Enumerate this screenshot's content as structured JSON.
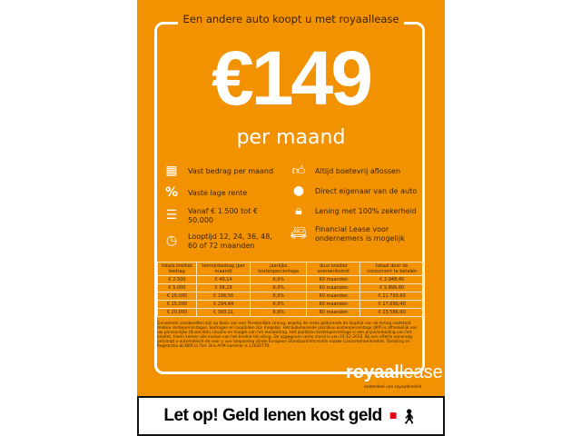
{
  "tagline": "Een andere auto koopt u met royaallease",
  "price": "€149",
  "per_month": "per maand",
  "features_left": [
    {
      "icon": "calendar-icon",
      "text": "Vast bedrag per maand"
    },
    {
      "icon": "percent-icon",
      "text": "Vaste lage rente"
    },
    {
      "icon": "coins-icon",
      "text": "Vanaf € 1.500 tot € 50.000"
    },
    {
      "icon": "clock-icon",
      "text": "Looptijd 12, 24, 36, 48, 60 of 72 maanden"
    }
  ],
  "features_right": [
    {
      "icon": "thumbs-up-icon",
      "text": "Altijd boetevrij aflossen"
    },
    {
      "icon": "person-icon",
      "text": "Direct eigenaar van de auto"
    },
    {
      "icon": "lock-icon",
      "text": "Lening met 100% zekerheid"
    },
    {
      "icon": "van-icon",
      "text": "Financial Lease voor ondernemers is mogelijk"
    }
  ],
  "table": {
    "headers": [
      "totale krediet bedrag",
      "termijnbedrag (per maand)",
      "jaarlijks kostenpercentage",
      "duur krediet overeenkomst",
      "totaal door de consument te betalen"
    ],
    "rows": [
      [
        "€ 2.500",
        "€ 49,14",
        "6,9%",
        "60 maanden",
        "€ 2.948,40"
      ],
      [
        "€ 5.000",
        "€ 98,28",
        "6,9%",
        "60 maanden",
        "€ 5.896,80"
      ],
      [
        "€ 10.000",
        "€ 196,56",
        "6,9%",
        "60 maanden",
        "€ 11.793,60"
      ],
      [
        "€ 15.000",
        "€ 294,84",
        "6,9%",
        "60 maanden",
        "€ 17.690,40"
      ],
      [
        "€ 20.000",
        "€ 393,11",
        "6,9%",
        "60 maanden",
        "€ 23.586,60"
      ]
    ]
  },
  "fine_print": "Genoemde voorbeelden zijn op basis van een Persoonlijke Lening, waarbij de rente gedurende de looptijd van de lening vaststaat. Andere rentepercentages, bedragen en looptijden zijn mogelijk. Het bijbehorende jaarlijkse kostenpercentage (JKP) is afhankelijk van uw persoonlijke (financiële) situatie en hoogte van het leenbedrag. Het jaarlijkse kostenpercentage is een prijsaanduiding van het krediet, hierin komen alle kosten van het krediet tot uiting. De opgegeven rente stond is van 01-12-2016. Bij een offerte aanvraag ontvangt u automatisch de voor u van toepassing zijnde Europese Standaardinformatie inzake Consumentenkrediet. Toelating en Registratie bij BKR in Tiel. Ons AFM nummer is 12020779.",
  "logo": {
    "part1": "royaal",
    "part2": "lease",
    "sub": "onderdeel van royaalkrediet"
  },
  "warning": "Let op! Geld lenen kost geld",
  "colors": {
    "orange": "#f39200",
    "text": "#3a2400"
  }
}
